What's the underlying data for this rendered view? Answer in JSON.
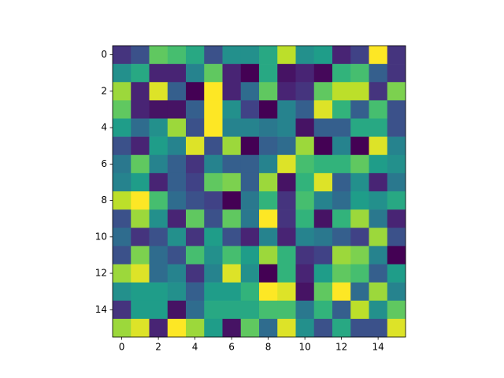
{
  "chart_data": {
    "type": "heatmap",
    "colormap": "viridis",
    "xlim": [
      -0.5,
      15.5
    ],
    "ylim": [
      15.5,
      -0.5
    ],
    "xticks": [
      0,
      2,
      4,
      6,
      8,
      10,
      12,
      14
    ],
    "yticks": [
      0,
      2,
      4,
      6,
      8,
      10,
      12,
      14
    ],
    "values": [
      [
        0.15,
        0.25,
        0.75,
        0.7,
        0.6,
        0.25,
        0.5,
        0.5,
        0.6,
        0.9,
        0.5,
        0.55,
        0.1,
        0.2,
        1.0,
        0.15
      ],
      [
        0.5,
        0.6,
        0.1,
        0.1,
        0.45,
        0.75,
        0.1,
        0.0,
        0.6,
        0.05,
        0.1,
        0.02,
        0.65,
        0.7,
        0.3,
        0.15
      ],
      [
        0.85,
        0.1,
        0.95,
        0.3,
        0.0,
        1.0,
        0.1,
        0.35,
        0.75,
        0.1,
        0.15,
        0.75,
        0.9,
        0.9,
        0.15,
        0.8
      ],
      [
        0.75,
        0.1,
        0.05,
        0.05,
        0.3,
        1.0,
        0.5,
        0.2,
        0.0,
        0.45,
        0.3,
        0.95,
        0.65,
        0.3,
        0.7,
        0.25
      ],
      [
        0.55,
        0.35,
        0.5,
        0.85,
        0.25,
        1.0,
        0.45,
        0.45,
        0.4,
        0.45,
        0.05,
        0.3,
        0.3,
        0.6,
        0.6,
        0.25
      ],
      [
        0.25,
        0.1,
        0.55,
        0.45,
        0.95,
        0.25,
        0.85,
        0.0,
        0.3,
        0.35,
        0.85,
        0.0,
        0.45,
        0.0,
        0.95,
        0.45
      ],
      [
        0.4,
        0.75,
        0.45,
        0.3,
        0.15,
        0.45,
        0.3,
        0.3,
        0.45,
        0.95,
        0.7,
        0.65,
        0.65,
        0.75,
        0.55,
        0.5
      ],
      [
        0.45,
        0.55,
        0.1,
        0.3,
        0.2,
        0.75,
        0.8,
        0.3,
        0.85,
        0.05,
        0.65,
        0.95,
        0.3,
        0.5,
        0.1,
        0.4
      ],
      [
        0.9,
        1.0,
        0.7,
        0.35,
        0.25,
        0.2,
        0.0,
        0.4,
        0.65,
        0.15,
        0.7,
        0.45,
        0.35,
        0.55,
        0.5,
        0.6
      ],
      [
        0.25,
        0.85,
        0.5,
        0.1,
        0.75,
        0.25,
        0.75,
        0.4,
        1.0,
        0.15,
        0.65,
        0.05,
        0.65,
        0.85,
        0.4,
        0.1
      ],
      [
        0.35,
        0.15,
        0.25,
        0.5,
        0.15,
        0.55,
        0.25,
        0.1,
        0.45,
        0.1,
        0.45,
        0.4,
        0.3,
        0.2,
        0.85,
        0.25
      ],
      [
        0.25,
        0.8,
        0.35,
        0.25,
        0.7,
        0.5,
        0.7,
        0.55,
        0.85,
        0.65,
        0.15,
        0.2,
        0.85,
        0.8,
        0.45,
        0.0
      ],
      [
        0.85,
        0.95,
        0.35,
        0.45,
        0.15,
        0.45,
        0.95,
        0.5,
        0.0,
        0.65,
        0.1,
        0.55,
        0.75,
        0.7,
        0.3,
        0.55
      ],
      [
        0.5,
        0.55,
        0.55,
        0.5,
        0.3,
        0.55,
        0.55,
        0.65,
        1.0,
        0.95,
        0.05,
        0.75,
        1.0,
        0.35,
        0.85,
        0.45
      ],
      [
        0.15,
        0.55,
        0.55,
        0.05,
        0.35,
        0.6,
        0.6,
        0.6,
        0.7,
        0.7,
        0.4,
        0.65,
        0.3,
        0.9,
        0.5,
        0.75
      ],
      [
        0.85,
        0.95,
        0.1,
        1.0,
        0.85,
        0.55,
        0.05,
        0.75,
        0.35,
        0.95,
        0.5,
        0.25,
        0.6,
        0.25,
        0.25,
        0.95
      ]
    ]
  }
}
